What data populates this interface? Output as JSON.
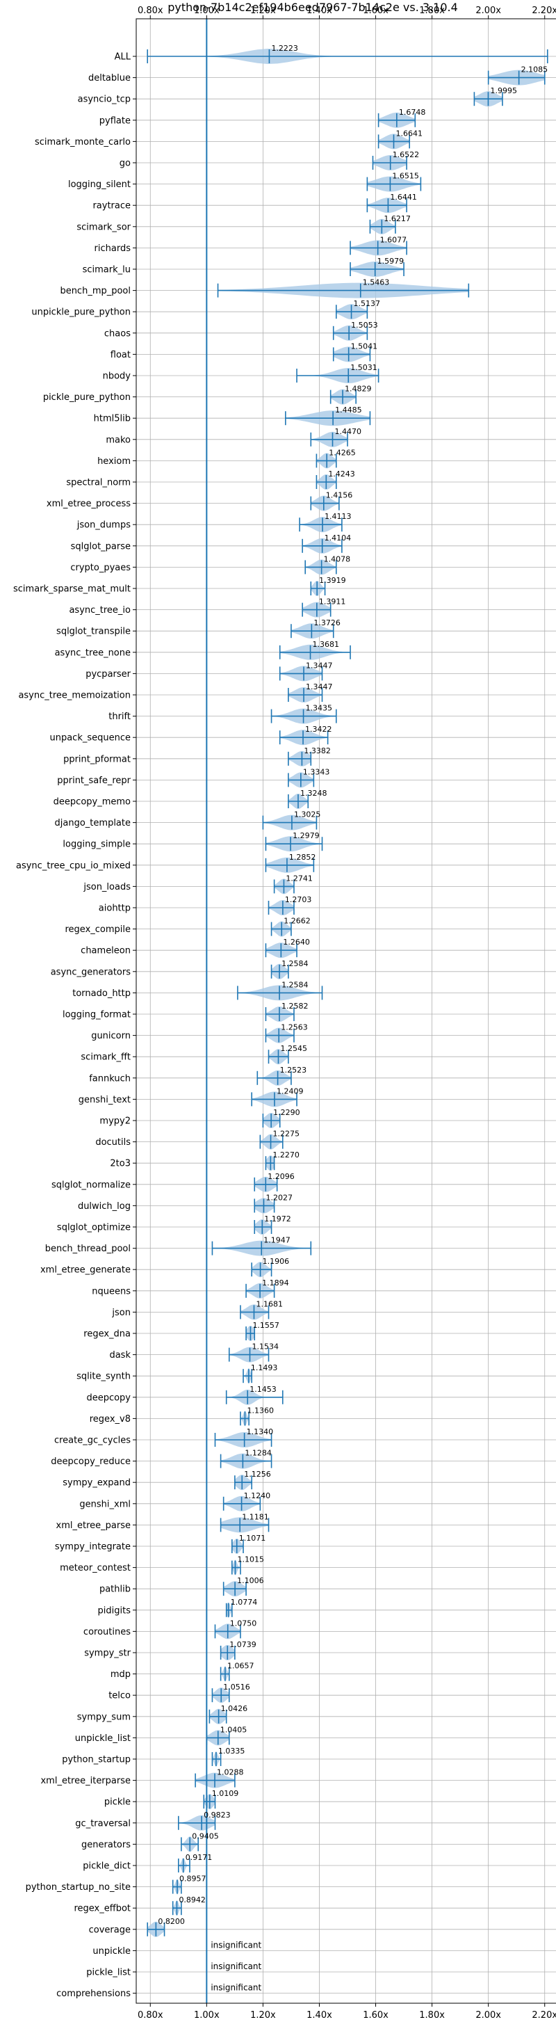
{
  "chart_data": {
    "type": "violin",
    "title": "python-7b14c2ef194b6eed7967-7b14c2e vs. 3.10.4",
    "xlim": [
      0.75,
      2.25
    ],
    "ticks": [
      "0.80x",
      "1.00x",
      "1.20x",
      "1.40x",
      "1.60x",
      "1.80x",
      "2.00x",
      "2.20x"
    ],
    "tick_values": [
      0.8,
      1.0,
      1.2,
      1.4,
      1.6,
      1.8,
      2.0,
      2.2
    ],
    "reference_line": 1.0,
    "colors": {
      "body": "#a9c9e6",
      "line": "#1f77b4",
      "grid": "#b0b0b0"
    },
    "insignificant_label": "insignificant",
    "benchmarks": [
      {
        "name": "ALL",
        "value": 1.2223,
        "label": "1.2223",
        "min": 0.79,
        "max": 2.21,
        "spread": 0.14
      },
      {
        "name": "deltablue",
        "value": 2.1085,
        "label": "2.1085",
        "min": 2.0,
        "max": 2.2,
        "spread": 0.1
      },
      {
        "name": "asyncio_tcp",
        "value": 1.9995,
        "label": "1.9995",
        "min": 1.95,
        "max": 2.05,
        "spread": 0.05
      },
      {
        "name": "pyflate",
        "value": 1.6748,
        "label": "1.6748",
        "min": 1.61,
        "max": 1.74,
        "spread": 0.06
      },
      {
        "name": "scimark_monte_carlo",
        "value": 1.6641,
        "label": "1.6641",
        "min": 1.61,
        "max": 1.72,
        "spread": 0.05
      },
      {
        "name": "go",
        "value": 1.6522,
        "label": "1.6522",
        "min": 1.59,
        "max": 1.71,
        "spread": 0.06
      },
      {
        "name": "logging_silent",
        "value": 1.6515,
        "label": "1.6515",
        "min": 1.57,
        "max": 1.76,
        "spread": 0.08
      },
      {
        "name": "raytrace",
        "value": 1.6441,
        "label": "1.6441",
        "min": 1.57,
        "max": 1.71,
        "spread": 0.06
      },
      {
        "name": "scimark_sor",
        "value": 1.6217,
        "label": "1.6217",
        "min": 1.58,
        "max": 1.67,
        "spread": 0.04
      },
      {
        "name": "richards",
        "value": 1.6077,
        "label": "1.6077",
        "min": 1.51,
        "max": 1.71,
        "spread": 0.08
      },
      {
        "name": "scimark_lu",
        "value": 1.5979,
        "label": "1.5979",
        "min": 1.51,
        "max": 1.7,
        "spread": 0.08
      },
      {
        "name": "bench_mp_pool",
        "value": 1.5463,
        "label": "1.5463",
        "min": 1.04,
        "max": 1.93,
        "spread": 0.35
      },
      {
        "name": "unpickle_pure_python",
        "value": 1.5137,
        "label": "1.5137",
        "min": 1.46,
        "max": 1.57,
        "spread": 0.05
      },
      {
        "name": "chaos",
        "value": 1.5053,
        "label": "1.5053",
        "min": 1.45,
        "max": 1.57,
        "spread": 0.05
      },
      {
        "name": "float",
        "value": 1.5041,
        "label": "1.5041",
        "min": 1.45,
        "max": 1.58,
        "spread": 0.06
      },
      {
        "name": "nbody",
        "value": 1.5031,
        "label": "1.5031",
        "min": 1.32,
        "max": 1.61,
        "spread": 0.08
      },
      {
        "name": "pickle_pure_python",
        "value": 1.4829,
        "label": "1.4829",
        "min": 1.44,
        "max": 1.53,
        "spread": 0.04
      },
      {
        "name": "html5lib",
        "value": 1.4485,
        "label": "1.4485",
        "min": 1.28,
        "max": 1.58,
        "spread": 0.12
      },
      {
        "name": "mako",
        "value": 1.447,
        "label": "1.4470",
        "min": 1.37,
        "max": 1.5,
        "spread": 0.05
      },
      {
        "name": "hexiom",
        "value": 1.4265,
        "label": "1.4265",
        "min": 1.39,
        "max": 1.46,
        "spread": 0.03
      },
      {
        "name": "spectral_norm",
        "value": 1.4243,
        "label": "1.4243",
        "min": 1.39,
        "max": 1.46,
        "spread": 0.03
      },
      {
        "name": "xml_etree_process",
        "value": 1.4156,
        "label": "1.4156",
        "min": 1.37,
        "max": 1.47,
        "spread": 0.04
      },
      {
        "name": "json_dumps",
        "value": 1.4113,
        "label": "1.4113",
        "min": 1.33,
        "max": 1.48,
        "spread": 0.05
      },
      {
        "name": "sqlglot_parse",
        "value": 1.4104,
        "label": "1.4104",
        "min": 1.34,
        "max": 1.48,
        "spread": 0.05
      },
      {
        "name": "crypto_pyaes",
        "value": 1.4078,
        "label": "1.4078",
        "min": 1.35,
        "max": 1.46,
        "spread": 0.04
      },
      {
        "name": "scimark_sparse_mat_mult",
        "value": 1.3919,
        "label": "1.3919",
        "min": 1.37,
        "max": 1.42,
        "spread": 0.02
      },
      {
        "name": "async_tree_io",
        "value": 1.3911,
        "label": "1.3911",
        "min": 1.34,
        "max": 1.44,
        "spread": 0.05
      },
      {
        "name": "sqlglot_transpile",
        "value": 1.3726,
        "label": "1.3726",
        "min": 1.3,
        "max": 1.45,
        "spread": 0.06
      },
      {
        "name": "async_tree_none",
        "value": 1.3681,
        "label": "1.3681",
        "min": 1.26,
        "max": 1.51,
        "spread": 0.08
      },
      {
        "name": "pycparser",
        "value": 1.3447,
        "label": "1.3447",
        "min": 1.26,
        "max": 1.41,
        "spread": 0.06
      },
      {
        "name": "async_tree_memoization",
        "value": 1.3447,
        "label": "1.3447",
        "min": 1.29,
        "max": 1.41,
        "spread": 0.05
      },
      {
        "name": "thrift",
        "value": 1.3435,
        "label": "1.3435",
        "min": 1.23,
        "max": 1.46,
        "spread": 0.07
      },
      {
        "name": "unpack_sequence",
        "value": 1.3422,
        "label": "1.3422",
        "min": 1.26,
        "max": 1.43,
        "spread": 0.06
      },
      {
        "name": "pprint_pformat",
        "value": 1.3382,
        "label": "1.3382",
        "min": 1.29,
        "max": 1.37,
        "spread": 0.04
      },
      {
        "name": "pprint_safe_repr",
        "value": 1.3343,
        "label": "1.3343",
        "min": 1.29,
        "max": 1.38,
        "spread": 0.04
      },
      {
        "name": "deepcopy_memo",
        "value": 1.3248,
        "label": "1.3248",
        "min": 1.29,
        "max": 1.36,
        "spread": 0.03
      },
      {
        "name": "django_template",
        "value": 1.3025,
        "label": "1.3025",
        "min": 1.2,
        "max": 1.39,
        "spread": 0.07
      },
      {
        "name": "logging_simple",
        "value": 1.2979,
        "label": "1.2979",
        "min": 1.21,
        "max": 1.41,
        "spread": 0.07
      },
      {
        "name": "async_tree_cpu_io_mixed",
        "value": 1.2852,
        "label": "1.2852",
        "min": 1.21,
        "max": 1.38,
        "spread": 0.07
      },
      {
        "name": "json_loads",
        "value": 1.2741,
        "label": "1.2741",
        "min": 1.24,
        "max": 1.31,
        "spread": 0.03
      },
      {
        "name": "aiohttp",
        "value": 1.2703,
        "label": "1.2703",
        "min": 1.22,
        "max": 1.31,
        "spread": 0.04
      },
      {
        "name": "regex_compile",
        "value": 1.2662,
        "label": "1.2662",
        "min": 1.23,
        "max": 1.3,
        "spread": 0.03
      },
      {
        "name": "chameleon",
        "value": 1.264,
        "label": "1.2640",
        "min": 1.21,
        "max": 1.32,
        "spread": 0.05
      },
      {
        "name": "async_generators",
        "value": 1.2584,
        "label": "1.2584",
        "min": 1.23,
        "max": 1.29,
        "spread": 0.03
      },
      {
        "name": "tornado_http",
        "value": 1.2584,
        "label": "1.2584",
        "min": 1.11,
        "max": 1.41,
        "spread": 0.09
      },
      {
        "name": "logging_format",
        "value": 1.2582,
        "label": "1.2582",
        "min": 1.21,
        "max": 1.31,
        "spread": 0.04
      },
      {
        "name": "gunicorn",
        "value": 1.2563,
        "label": "1.2563",
        "min": 1.21,
        "max": 1.31,
        "spread": 0.04
      },
      {
        "name": "scimark_fft",
        "value": 1.2545,
        "label": "1.2545",
        "min": 1.22,
        "max": 1.29,
        "spread": 0.03
      },
      {
        "name": "fannkuch",
        "value": 1.2523,
        "label": "1.2523",
        "min": 1.18,
        "max": 1.3,
        "spread": 0.04
      },
      {
        "name": "genshi_text",
        "value": 1.2409,
        "label": "1.2409",
        "min": 1.16,
        "max": 1.32,
        "spread": 0.06
      },
      {
        "name": "mypy2",
        "value": 1.229,
        "label": "1.2290",
        "min": 1.2,
        "max": 1.26,
        "spread": 0.03
      },
      {
        "name": "docutils",
        "value": 1.2275,
        "label": "1.2275",
        "min": 1.19,
        "max": 1.27,
        "spread": 0.03
      },
      {
        "name": "2to3",
        "value": 1.227,
        "label": "1.2270",
        "min": 1.21,
        "max": 1.24,
        "spread": 0.02
      },
      {
        "name": "sqlglot_normalize",
        "value": 1.2096,
        "label": "1.2096",
        "min": 1.17,
        "max": 1.25,
        "spread": 0.04
      },
      {
        "name": "dulwich_log",
        "value": 1.2027,
        "label": "1.2027",
        "min": 1.17,
        "max": 1.24,
        "spread": 0.04
      },
      {
        "name": "sqlglot_optimize",
        "value": 1.1972,
        "label": "1.1972",
        "min": 1.17,
        "max": 1.23,
        "spread": 0.03
      },
      {
        "name": "bench_thread_pool",
        "value": 1.1947,
        "label": "1.1947",
        "min": 1.02,
        "max": 1.37,
        "spread": 0.1
      },
      {
        "name": "xml_etree_generate",
        "value": 1.1906,
        "label": "1.1906",
        "min": 1.16,
        "max": 1.23,
        "spread": 0.03
      },
      {
        "name": "nqueens",
        "value": 1.1894,
        "label": "1.1894",
        "min": 1.14,
        "max": 1.24,
        "spread": 0.04
      },
      {
        "name": "json",
        "value": 1.1681,
        "label": "1.1681",
        "min": 1.12,
        "max": 1.22,
        "spread": 0.04
      },
      {
        "name": "regex_dna",
        "value": 1.1557,
        "label": "1.1557",
        "min": 1.14,
        "max": 1.17,
        "spread": 0.02
      },
      {
        "name": "dask",
        "value": 1.1534,
        "label": "1.1534",
        "min": 1.08,
        "max": 1.22,
        "spread": 0.05
      },
      {
        "name": "sqlite_synth",
        "value": 1.1493,
        "label": "1.1493",
        "min": 1.13,
        "max": 1.16,
        "spread": 0.01
      },
      {
        "name": "deepcopy",
        "value": 1.1453,
        "label": "1.1453",
        "min": 1.07,
        "max": 1.27,
        "spread": 0.04
      },
      {
        "name": "regex_v8",
        "value": 1.136,
        "label": "1.1360",
        "min": 1.12,
        "max": 1.15,
        "spread": 0.01
      },
      {
        "name": "create_gc_cycles",
        "value": 1.134,
        "label": "1.1340",
        "min": 1.03,
        "max": 1.23,
        "spread": 0.07
      },
      {
        "name": "deepcopy_reduce",
        "value": 1.1284,
        "label": "1.1284",
        "min": 1.05,
        "max": 1.23,
        "spread": 0.06
      },
      {
        "name": "sympy_expand",
        "value": 1.1256,
        "label": "1.1256",
        "min": 1.1,
        "max": 1.16,
        "spread": 0.03
      },
      {
        "name": "genshi_xml",
        "value": 1.124,
        "label": "1.1240",
        "min": 1.06,
        "max": 1.19,
        "spread": 0.05
      },
      {
        "name": "xml_etree_parse",
        "value": 1.1181,
        "label": "1.1181",
        "min": 1.05,
        "max": 1.22,
        "spread": 0.08
      },
      {
        "name": "sympy_integrate",
        "value": 1.1071,
        "label": "1.1071",
        "min": 1.09,
        "max": 1.13,
        "spread": 0.02
      },
      {
        "name": "meteor_contest",
        "value": 1.1015,
        "label": "1.1015",
        "min": 1.09,
        "max": 1.12,
        "spread": 0.01
      },
      {
        "name": "pathlib",
        "value": 1.1006,
        "label": "1.1006",
        "min": 1.06,
        "max": 1.14,
        "spread": 0.04
      },
      {
        "name": "pidigits",
        "value": 1.0774,
        "label": "1.0774",
        "min": 1.07,
        "max": 1.09,
        "spread": 0.01
      },
      {
        "name": "coroutines",
        "value": 1.075,
        "label": "1.0750",
        "min": 1.03,
        "max": 1.12,
        "spread": 0.04
      },
      {
        "name": "sympy_str",
        "value": 1.0739,
        "label": "1.0739",
        "min": 1.05,
        "max": 1.1,
        "spread": 0.03
      },
      {
        "name": "mdp",
        "value": 1.0657,
        "label": "1.0657",
        "min": 1.05,
        "max": 1.08,
        "spread": 0.01
      },
      {
        "name": "telco",
        "value": 1.0516,
        "label": "1.0516",
        "min": 1.02,
        "max": 1.08,
        "spread": 0.03
      },
      {
        "name": "sympy_sum",
        "value": 1.0426,
        "label": "1.0426",
        "min": 1.01,
        "max": 1.07,
        "spread": 0.03
      },
      {
        "name": "unpickle_list",
        "value": 1.0405,
        "label": "1.0405",
        "min": 1.0,
        "max": 1.08,
        "spread": 0.04
      },
      {
        "name": "python_startup",
        "value": 1.0335,
        "label": "1.0335",
        "min": 1.02,
        "max": 1.05,
        "spread": 0.01
      },
      {
        "name": "xml_etree_iterparse",
        "value": 1.0288,
        "label": "1.0288",
        "min": 0.96,
        "max": 1.1,
        "spread": 0.06
      },
      {
        "name": "pickle",
        "value": 1.0109,
        "label": "1.0109",
        "min": 0.99,
        "max": 1.03,
        "spread": 0.02
      },
      {
        "name": "gc_traversal",
        "value": 0.9823,
        "label": "0.9823",
        "min": 0.9,
        "max": 1.03,
        "spread": 0.05
      },
      {
        "name": "generators",
        "value": 0.9405,
        "label": "0.9405",
        "min": 0.91,
        "max": 0.97,
        "spread": 0.02
      },
      {
        "name": "pickle_dict",
        "value": 0.9171,
        "label": "0.9171",
        "min": 0.9,
        "max": 0.94,
        "spread": 0.01
      },
      {
        "name": "python_startup_no_site",
        "value": 0.8957,
        "label": "0.8957",
        "min": 0.88,
        "max": 0.91,
        "spread": 0.01
      },
      {
        "name": "regex_effbot",
        "value": 0.8942,
        "label": "0.8942",
        "min": 0.88,
        "max": 0.91,
        "spread": 0.01
      },
      {
        "name": "coverage",
        "value": 0.82,
        "label": "0.8200",
        "min": 0.79,
        "max": 0.85,
        "spread": 0.03
      },
      {
        "name": "unpickle",
        "insignificant": true
      },
      {
        "name": "pickle_list",
        "insignificant": true
      },
      {
        "name": "comprehensions",
        "insignificant": true
      }
    ]
  }
}
